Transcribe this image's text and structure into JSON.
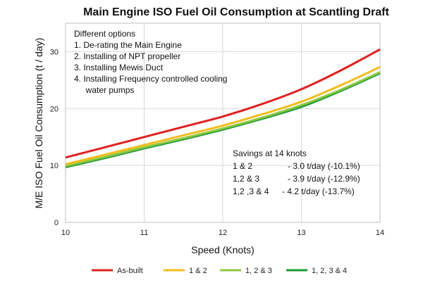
{
  "chart_data": {
    "type": "line",
    "title": "Main Engine ISO Fuel Oil Consumption at Scantling Draft",
    "xlabel": "Speed (Knots)",
    "ylabel": "M/E ISO Fuel Oil Consumption (t / day)",
    "xlim": [
      10,
      14
    ],
    "ylim": [
      0,
      35
    ],
    "xticks": [
      10,
      11,
      12,
      13,
      14
    ],
    "yticks": [
      0,
      10,
      20,
      30
    ],
    "grid": true,
    "legend_position": "bottom",
    "x": [
      10,
      10.5,
      11,
      11.5,
      12,
      12.5,
      13,
      13.5,
      14
    ],
    "series": [
      {
        "name": "As-built",
        "color": "#e02020",
        "values": [
          11.4,
          13.2,
          15.0,
          16.8,
          18.6,
          20.8,
          23.4,
          26.7,
          30.4
        ]
      },
      {
        "name": "1 & 2",
        "color": "#f2bc1c",
        "values": [
          10.2,
          11.9,
          13.6,
          15.3,
          17.0,
          19.0,
          21.2,
          24.1,
          27.3
        ]
      },
      {
        "name": "1, 2 & 3",
        "color": "#8cc840",
        "values": [
          9.9,
          11.5,
          13.2,
          14.8,
          16.5,
          18.4,
          20.6,
          23.3,
          26.4
        ]
      },
      {
        "name": "1, 2, 3 & 4",
        "color": "#1e9a3a",
        "values": [
          9.7,
          11.3,
          13.0,
          14.6,
          16.3,
          18.2,
          20.3,
          23.1,
          26.2
        ]
      }
    ],
    "annotations": {
      "options_title": "Different options",
      "options": [
        "1.  De-rating the Main Engine",
        "2.  Installing of NPT propeller",
        "3.  Installing Mewis Duct",
        "4.  Installing Frequency controlled cooling",
        "     water pumps"
      ],
      "savings_title": "Savings at 14 knots",
      "savings": [
        {
          "label": "1 & 2",
          "value": "- 3.0 t/day (-10.1%)"
        },
        {
          "label": "1,2 & 3",
          "value": "- 3.9 t/day (-12.9%)"
        },
        {
          "label": "1,2 ,3 & 4",
          "value": "- 4.2 t/day (-13.7%)"
        }
      ]
    }
  }
}
